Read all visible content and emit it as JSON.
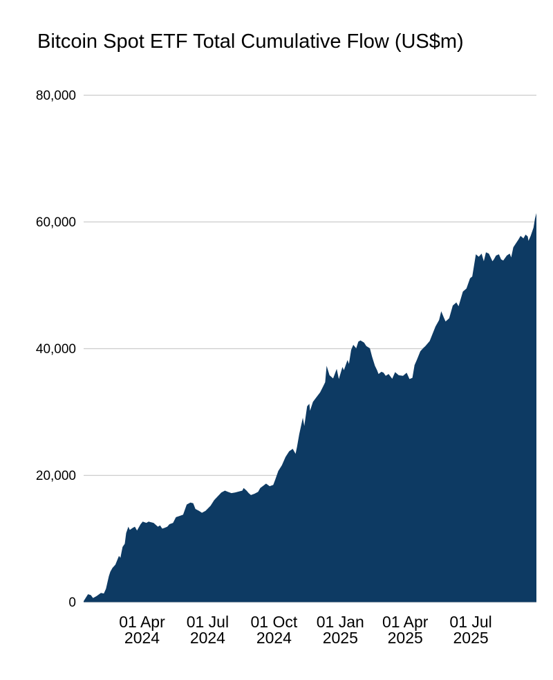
{
  "title": "Bitcoin Spot ETF Total Cumulative Flow (US$m)",
  "colors": {
    "area_fill": "#0d3a63",
    "gridline": "#cccccc",
    "text": "#000000",
    "background": "#ffffff"
  },
  "chart_data": {
    "type": "area",
    "title": "Bitcoin Spot ETF Total Cumulative Flow (US$m)",
    "xlabel": "",
    "ylabel": "",
    "x_type": "date",
    "x_range": [
      "2024-01-11",
      "2025-09-30"
    ],
    "ylim": [
      0,
      80000
    ],
    "y_ticks": [
      0,
      20000,
      40000,
      60000,
      80000
    ],
    "y_tick_labels": [
      "0",
      "20,000",
      "40,000",
      "60,000",
      "80,000"
    ],
    "x_ticks": [
      {
        "date": "2024-04-01",
        "line1": "01 Apr",
        "line2": "2024"
      },
      {
        "date": "2024-07-01",
        "line1": "01 Jul",
        "line2": "2024"
      },
      {
        "date": "2024-10-01",
        "line1": "01 Oct",
        "line2": "2024"
      },
      {
        "date": "2025-01-01",
        "line1": "01 Jan",
        "line2": "2025"
      },
      {
        "date": "2025-04-01",
        "line1": "01 Apr",
        "line2": "2025"
      },
      {
        "date": "2025-07-01",
        "line1": "01 Jul",
        "line2": "2025"
      }
    ],
    "grid": true,
    "legend": false,
    "series": [
      {
        "name": "Total Cumulative Flow (US$m)",
        "points": [
          [
            "2024-01-11",
            150
          ],
          [
            "2024-01-17",
            1250
          ],
          [
            "2024-01-21",
            1100
          ],
          [
            "2024-01-24",
            650
          ],
          [
            "2024-01-29",
            950
          ],
          [
            "2024-02-04",
            1450
          ],
          [
            "2024-02-08",
            1350
          ],
          [
            "2024-02-11",
            2100
          ],
          [
            "2024-02-15",
            4100
          ],
          [
            "2024-02-17",
            4800
          ],
          [
            "2024-02-20",
            5400
          ],
          [
            "2024-02-24",
            5900
          ],
          [
            "2024-02-29",
            7300
          ],
          [
            "2024-03-02",
            7000
          ],
          [
            "2024-03-05",
            8700
          ],
          [
            "2024-03-08",
            9200
          ],
          [
            "2024-03-10",
            10900
          ],
          [
            "2024-03-13",
            11900
          ],
          [
            "2024-03-15",
            11400
          ],
          [
            "2024-03-19",
            11700
          ],
          [
            "2024-03-22",
            11900
          ],
          [
            "2024-03-25",
            11300
          ],
          [
            "2024-03-30",
            12300
          ],
          [
            "2024-04-02",
            12700
          ],
          [
            "2024-04-07",
            12500
          ],
          [
            "2024-04-10",
            12700
          ],
          [
            "2024-04-17",
            12500
          ],
          [
            "2024-04-20",
            12200
          ],
          [
            "2024-04-23",
            11900
          ],
          [
            "2024-04-26",
            12100
          ],
          [
            "2024-04-29",
            11600
          ],
          [
            "2024-05-02",
            11700
          ],
          [
            "2024-05-06",
            11900
          ],
          [
            "2024-05-09",
            12300
          ],
          [
            "2024-05-14",
            12500
          ],
          [
            "2024-05-18",
            13400
          ],
          [
            "2024-05-23",
            13600
          ],
          [
            "2024-05-28",
            13800
          ],
          [
            "2024-06-02",
            15400
          ],
          [
            "2024-06-07",
            15700
          ],
          [
            "2024-06-11",
            15600
          ],
          [
            "2024-06-14",
            14700
          ],
          [
            "2024-06-19",
            14400
          ],
          [
            "2024-06-23",
            14100
          ],
          [
            "2024-06-28",
            14400
          ],
          [
            "2024-07-05",
            15200
          ],
          [
            "2024-07-10",
            16100
          ],
          [
            "2024-07-15",
            16700
          ],
          [
            "2024-07-20",
            17300
          ],
          [
            "2024-07-25",
            17600
          ],
          [
            "2024-07-29",
            17400
          ],
          [
            "2024-08-03",
            17200
          ],
          [
            "2024-08-08",
            17300
          ],
          [
            "2024-08-18",
            17600
          ],
          [
            "2024-08-20",
            18000
          ],
          [
            "2024-08-24",
            17600
          ],
          [
            "2024-08-27",
            17200
          ],
          [
            "2024-08-30",
            16900
          ],
          [
            "2024-09-04",
            17100
          ],
          [
            "2024-09-09",
            17400
          ],
          [
            "2024-09-12",
            18000
          ],
          [
            "2024-09-20",
            18700
          ],
          [
            "2024-09-25",
            18300
          ],
          [
            "2024-09-30",
            18500
          ],
          [
            "2024-10-03",
            19400
          ],
          [
            "2024-10-07",
            20700
          ],
          [
            "2024-10-12",
            21600
          ],
          [
            "2024-10-17",
            22900
          ],
          [
            "2024-10-22",
            23800
          ],
          [
            "2024-10-27",
            24200
          ],
          [
            "2024-10-31",
            23400
          ],
          [
            "2024-11-02",
            24500
          ],
          [
            "2024-11-05",
            26500
          ],
          [
            "2024-11-10",
            29100
          ],
          [
            "2024-11-12",
            27800
          ],
          [
            "2024-11-16",
            30900
          ],
          [
            "2024-11-19",
            31300
          ],
          [
            "2024-11-20",
            30200
          ],
          [
            "2024-11-24",
            31600
          ],
          [
            "2024-11-28",
            32200
          ],
          [
            "2024-12-04",
            33100
          ],
          [
            "2024-12-08",
            34000
          ],
          [
            "2024-12-11",
            34700
          ],
          [
            "2024-12-13",
            37300
          ],
          [
            "2024-12-17",
            35800
          ],
          [
            "2024-12-22",
            35300
          ],
          [
            "2024-12-27",
            36800
          ],
          [
            "2024-12-30",
            35200
          ],
          [
            "2025-01-04",
            37100
          ],
          [
            "2025-01-06",
            36600
          ],
          [
            "2025-01-11",
            38200
          ],
          [
            "2025-01-13",
            37600
          ],
          [
            "2025-01-16",
            39800
          ],
          [
            "2025-01-19",
            40600
          ],
          [
            "2025-01-23",
            40050
          ],
          [
            "2025-01-26",
            41100
          ],
          [
            "2025-01-29",
            41300
          ],
          [
            "2025-02-03",
            40950
          ],
          [
            "2025-02-06",
            40400
          ],
          [
            "2025-02-11",
            40050
          ],
          [
            "2025-02-14",
            38750
          ],
          [
            "2025-02-18",
            37300
          ],
          [
            "2025-02-21",
            36600
          ],
          [
            "2025-02-23",
            36000
          ],
          [
            "2025-02-27",
            36350
          ],
          [
            "2025-03-02",
            36200
          ],
          [
            "2025-03-05",
            35700
          ],
          [
            "2025-03-09",
            36000
          ],
          [
            "2025-03-14",
            35250
          ],
          [
            "2025-03-18",
            36300
          ],
          [
            "2025-03-23",
            35800
          ],
          [
            "2025-03-29",
            35700
          ],
          [
            "2025-04-03",
            36200
          ],
          [
            "2025-04-07",
            35200
          ],
          [
            "2025-04-11",
            35400
          ],
          [
            "2025-04-14",
            37400
          ],
          [
            "2025-04-17",
            38200
          ],
          [
            "2025-04-22",
            39600
          ],
          [
            "2025-04-26",
            40100
          ],
          [
            "2025-04-29",
            40400
          ],
          [
            "2025-05-05",
            41200
          ],
          [
            "2025-05-13",
            43500
          ],
          [
            "2025-05-18",
            44500
          ],
          [
            "2025-05-21",
            45900
          ],
          [
            "2025-05-25",
            44800
          ],
          [
            "2025-05-27",
            44300
          ],
          [
            "2025-06-01",
            44800
          ],
          [
            "2025-06-06",
            46800
          ],
          [
            "2025-06-11",
            47300
          ],
          [
            "2025-06-14",
            46700
          ],
          [
            "2025-06-20",
            49000
          ],
          [
            "2025-06-25",
            49500
          ],
          [
            "2025-06-30",
            51100
          ],
          [
            "2025-07-03",
            51400
          ],
          [
            "2025-07-08",
            54900
          ],
          [
            "2025-07-12",
            54500
          ],
          [
            "2025-07-16",
            55000
          ],
          [
            "2025-07-19",
            53800
          ],
          [
            "2025-07-22",
            55200
          ],
          [
            "2025-07-26",
            55000
          ],
          [
            "2025-07-31",
            53800
          ],
          [
            "2025-08-02",
            54100
          ],
          [
            "2025-08-05",
            54700
          ],
          [
            "2025-08-09",
            54900
          ],
          [
            "2025-08-12",
            54100
          ],
          [
            "2025-08-15",
            53900
          ],
          [
            "2025-08-20",
            54700
          ],
          [
            "2025-08-24",
            55000
          ],
          [
            "2025-08-26",
            54400
          ],
          [
            "2025-08-29",
            56000
          ],
          [
            "2025-09-02",
            56700
          ],
          [
            "2025-09-05",
            57200
          ],
          [
            "2025-09-08",
            57800
          ],
          [
            "2025-09-12",
            57400
          ],
          [
            "2025-09-15",
            58000
          ],
          [
            "2025-09-18",
            57700
          ],
          [
            "2025-09-19",
            57000
          ],
          [
            "2025-09-22",
            57800
          ],
          [
            "2025-09-26",
            59100
          ],
          [
            "2025-09-28",
            60500
          ],
          [
            "2025-09-30",
            61400
          ]
        ]
      }
    ]
  }
}
